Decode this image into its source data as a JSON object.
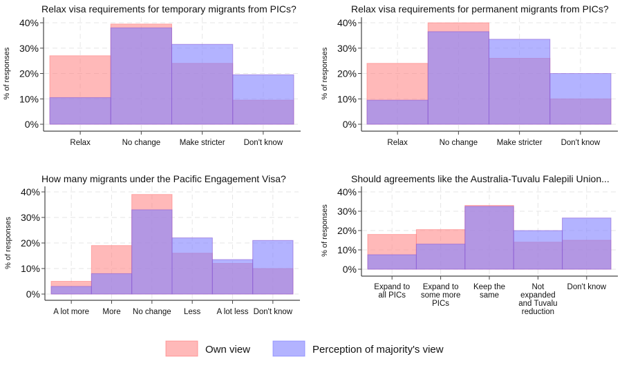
{
  "legend": {
    "placement": "bottom",
    "items": [
      {
        "name": "Own view",
        "color": "#ff7f7f"
      },
      {
        "name": "Perception of majority's view",
        "color": "#8080ff"
      }
    ]
  },
  "chart_data": [
    {
      "type": "bar",
      "title": "Relax visa requirements for temporary migrants from PICs?",
      "ylabel": "% of responses",
      "ylim": [
        0,
        40
      ],
      "yticks": [
        "0%",
        "10%",
        "20%",
        "30%",
        "40%"
      ],
      "grid": true,
      "categories": [
        [
          "Relax"
        ],
        [
          "No change"
        ],
        [
          "Make stricter"
        ],
        [
          "Don't know"
        ]
      ],
      "series": [
        {
          "name": "Own view",
          "values": [
            27,
            39.5,
            24,
            9.5
          ]
        },
        {
          "name": "Perception of majority's view",
          "values": [
            10.5,
            38,
            31.5,
            19.5
          ]
        }
      ]
    },
    {
      "type": "bar",
      "title": "Relax visa requirements for permanent migrants from PICs?",
      "ylabel": "% of responses",
      "ylim": [
        0,
        40
      ],
      "yticks": [
        "0%",
        "10%",
        "20%",
        "30%",
        "40%"
      ],
      "grid": true,
      "categories": [
        [
          "Relax"
        ],
        [
          "No change"
        ],
        [
          "Make stricter"
        ],
        [
          "Don't know"
        ]
      ],
      "series": [
        {
          "name": "Own view",
          "values": [
            24,
            40,
            26,
            10
          ]
        },
        {
          "name": "Perception of majority's view",
          "values": [
            9.5,
            36.5,
            33.5,
            20
          ]
        }
      ]
    },
    {
      "type": "bar",
      "title": "How many migrants under the Pacific Engagement Visa?",
      "ylabel": "% of responses",
      "ylim": [
        0,
        40
      ],
      "yticks": [
        "0%",
        "10%",
        "20%",
        "30%",
        "40%"
      ],
      "grid": true,
      "categories": [
        [
          "A lot more"
        ],
        [
          "More"
        ],
        [
          "No change"
        ],
        [
          "Less"
        ],
        [
          "A lot less"
        ],
        [
          "Don't know"
        ]
      ],
      "series": [
        {
          "name": "Own view",
          "values": [
            5,
            19,
            39,
            16,
            12,
            10
          ]
        },
        {
          "name": "Perception of majority's view",
          "values": [
            3,
            8,
            33,
            22,
            13.5,
            21
          ]
        }
      ]
    },
    {
      "type": "bar",
      "title": "Should agreements like the Australia-Tuvalu Falepili Union...",
      "ylabel": "% of responses",
      "ylim": [
        0,
        40
      ],
      "yticks": [
        "0%",
        "10%",
        "20%",
        "30%",
        "40%"
      ],
      "grid": true,
      "categories": [
        [
          "Expand to",
          "all PICs"
        ],
        [
          "Expand to",
          "some more",
          "PICs"
        ],
        [
          "Keep the",
          "same"
        ],
        [
          "Not",
          "expanded",
          "and Tuvalu",
          "reduction"
        ],
        [
          "Don't know"
        ]
      ],
      "series": [
        {
          "name": "Own view",
          "values": [
            18,
            20.5,
            33,
            14,
            15
          ]
        },
        {
          "name": "Perception of majority's view",
          "values": [
            7.5,
            13,
            32.5,
            20,
            26.5
          ]
        }
      ]
    }
  ]
}
